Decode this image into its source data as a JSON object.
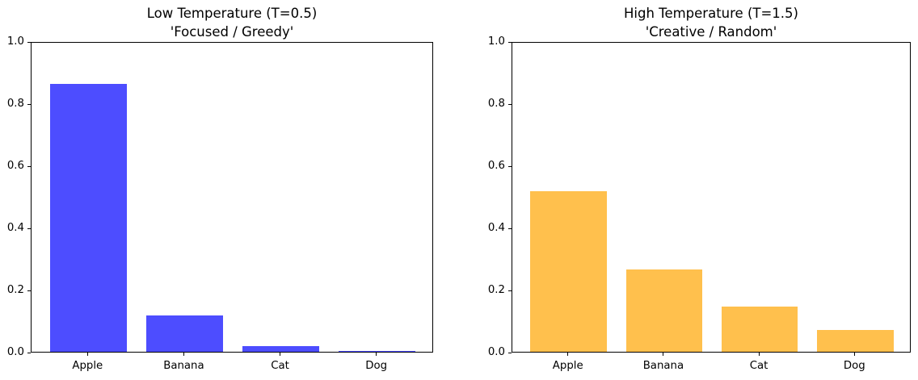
{
  "figure": {
    "background": "#ffffff",
    "text_color": "#000000"
  },
  "chart_data": [
    {
      "type": "bar",
      "title": "Low Temperature (T=0.5)",
      "subtitle": "'Focused / Greedy'",
      "categories": [
        "Apple",
        "Banana",
        "Cat",
        "Dog"
      ],
      "values": [
        0.862,
        0.117,
        0.019,
        0.002
      ],
      "bar_color": "#4D4DFF",
      "xlabel": "",
      "ylabel": "",
      "ylim": [
        0.0,
        1.0
      ],
      "ytick_labels": [
        "0.0",
        "0.2",
        "0.4",
        "0.6",
        "0.8",
        "1.0"
      ],
      "grid": false,
      "legend_position": "none"
    },
    {
      "type": "bar",
      "title": "High Temperature (T=1.5)",
      "subtitle": "'Creative / Random'",
      "categories": [
        "Apple",
        "Banana",
        "Cat",
        "Dog"
      ],
      "values": [
        0.518,
        0.266,
        0.146,
        0.07
      ],
      "bar_color": "#FFC04D",
      "xlabel": "",
      "ylabel": "",
      "ylim": [
        0.0,
        1.0
      ],
      "ytick_labels": [
        "0.0",
        "0.2",
        "0.4",
        "0.6",
        "0.8",
        "1.0"
      ],
      "grid": false,
      "legend_position": "none"
    }
  ]
}
